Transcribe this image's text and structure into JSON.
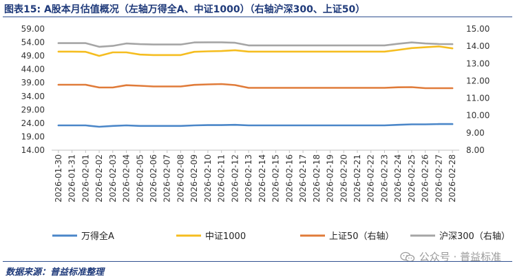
{
  "header": {
    "title": "图表15:  A股本月估值概况（左轴万得全A、中证1000）（右轴沪深300、上证50）"
  },
  "footer": {
    "source": "数据来源：普益标准整理",
    "watermark": "公众号 · 普益标准"
  },
  "chart_data": {
    "type": "line",
    "x": [
      "2026-01-30",
      "2026-01-31",
      "2026-02-01",
      "2026-02-02",
      "2026-02-03",
      "2026-02-04",
      "2026-02-05",
      "2026-02-06",
      "2026-02-07",
      "2026-02-08",
      "2026-02-09",
      "2026-02-10",
      "2026-02-11",
      "2026-02-12",
      "2026-02-13",
      "2026-02-14",
      "2026-02-15",
      "2026-02-16",
      "2026-02-17",
      "2026-02-18",
      "2026-02-19",
      "2026-02-20",
      "2026-02-21",
      "2026-02-22",
      "2026-02-23",
      "2026-02-24",
      "2026-02-25",
      "2026-02-26",
      "2026-02-27",
      "2026-02-28"
    ],
    "y_left": {
      "min": 14,
      "max": 59,
      "ticks": [
        "59.00",
        "54.00",
        "49.00",
        "44.00",
        "39.00",
        "34.00",
        "29.00",
        "24.00",
        "19.00",
        "14.00"
      ]
    },
    "y_right": {
      "min": 8,
      "max": 15,
      "ticks": [
        "15.00",
        "14.00",
        "13.00",
        "12.00",
        "11.00",
        "10.00",
        "9.00",
        "8.00"
      ]
    },
    "grid": false,
    "legend_position": "bottom",
    "series": [
      {
        "name": "万得全A",
        "axis": "left",
        "color": "#4a86c8",
        "values": [
          23.2,
          23.2,
          23.2,
          22.7,
          23.0,
          23.2,
          23.0,
          23.0,
          23.0,
          23.0,
          23.2,
          23.3,
          23.3,
          23.4,
          23.2,
          23.2,
          23.2,
          23.2,
          23.2,
          23.2,
          23.2,
          23.2,
          23.2,
          23.2,
          23.2,
          23.4,
          23.6,
          23.6,
          23.7,
          23.7
        ]
      },
      {
        "name": "中证1000",
        "axis": "left",
        "color": "#f5bd1f",
        "values": [
          50.6,
          50.6,
          50.5,
          49.0,
          50.3,
          50.3,
          49.5,
          49.3,
          49.3,
          49.3,
          50.5,
          50.7,
          50.8,
          51.1,
          50.6,
          50.6,
          50.6,
          50.6,
          50.6,
          50.6,
          50.6,
          50.6,
          50.6,
          50.6,
          50.6,
          51.2,
          51.9,
          52.2,
          52.5,
          51.8
        ]
      },
      {
        "name": "上证50（右轴）",
        "axis": "right",
        "color": "#e07b39",
        "values": [
          11.78,
          11.78,
          11.78,
          11.62,
          11.62,
          11.75,
          11.72,
          11.68,
          11.68,
          11.68,
          11.77,
          11.8,
          11.82,
          11.76,
          11.6,
          11.6,
          11.6,
          11.6,
          11.6,
          11.6,
          11.6,
          11.6,
          11.6,
          11.6,
          11.6,
          11.63,
          11.64,
          11.58,
          11.58,
          11.58
        ]
      },
      {
        "name": "沪深300（右轴）",
        "axis": "right",
        "color": "#a5a5a5",
        "values": [
          14.18,
          14.18,
          14.18,
          13.97,
          14.02,
          14.16,
          14.12,
          14.1,
          14.1,
          14.1,
          14.22,
          14.23,
          14.23,
          14.2,
          14.05,
          14.05,
          14.05,
          14.05,
          14.05,
          14.05,
          14.05,
          14.05,
          14.05,
          14.05,
          14.05,
          14.14,
          14.22,
          14.16,
          14.13,
          14.12
        ]
      }
    ]
  }
}
